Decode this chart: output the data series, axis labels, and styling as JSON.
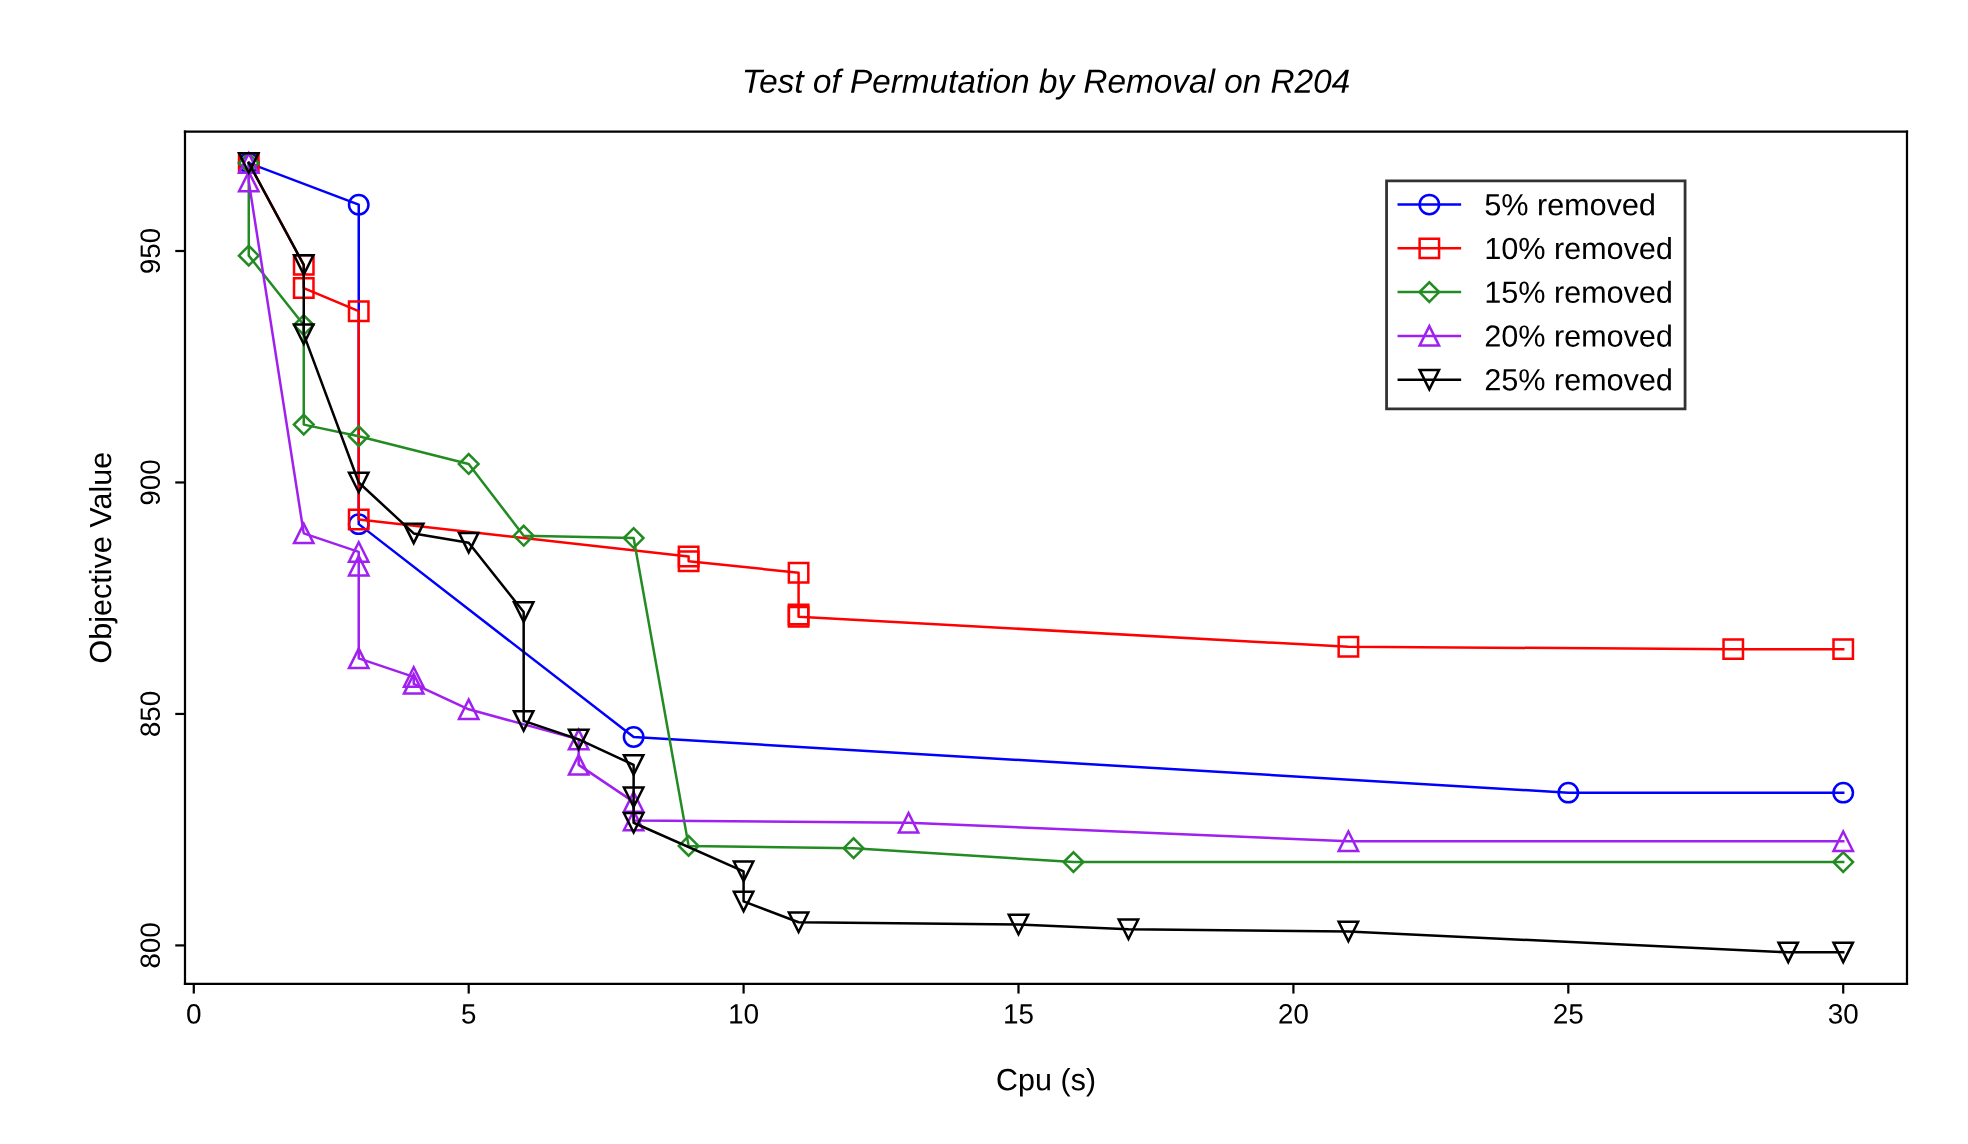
{
  "chart_data": {
    "type": "line",
    "title": "Test of Permutation by Removal on R204",
    "xlabel": "Cpu (s)",
    "ylabel": "Objective Value",
    "xlim": [
      -0.16,
      31.16
    ],
    "xticks": [
      0,
      5,
      10,
      15,
      20,
      25,
      30
    ],
    "ylim": [
      791.7,
      975.8
    ],
    "yticks": [
      800,
      850,
      900,
      950
    ],
    "grid": false,
    "legend": "top right",
    "series": [
      {
        "name": "5% removed",
        "color": "#0000ff",
        "marker": "circle",
        "x": [
          1,
          3,
          3,
          8,
          25,
          30
        ],
        "values": [
          969,
          960,
          891,
          845,
          833,
          833
        ]
      },
      {
        "name": "10% removed",
        "color": "#ff0000",
        "marker": "square",
        "x": [
          1,
          2,
          2,
          3,
          3,
          9,
          9,
          11,
          11,
          11,
          21,
          28,
          30
        ],
        "values": [
          969,
          947,
          942,
          937,
          892,
          884,
          883,
          880.5,
          871.5,
          871,
          864.5,
          864,
          864
        ]
      },
      {
        "name": "15% removed",
        "color": "#228b22",
        "marker": "diamond",
        "x": [
          1,
          1,
          2,
          2,
          3,
          5,
          6,
          8,
          9,
          12,
          16,
          30
        ],
        "values": [
          969,
          949,
          934,
          912.5,
          910,
          904,
          888.5,
          888,
          821.5,
          821,
          818,
          818
        ]
      },
      {
        "name": "20% removed",
        "color": "#a020f0",
        "marker": "triangle",
        "x": [
          1,
          1,
          2,
          3,
          3,
          3,
          4,
          4,
          5,
          7,
          7,
          8,
          8,
          13,
          21,
          30
        ],
        "values": [
          969,
          965,
          889,
          885,
          882,
          862,
          858,
          856.5,
          851,
          844.5,
          839,
          831,
          827,
          826.5,
          822.5,
          822.5
        ]
      },
      {
        "name": "25% removed",
        "color": "#000000",
        "marker": "triangle-down",
        "x": [
          1,
          2,
          2,
          3,
          4,
          5,
          6,
          6,
          7,
          8,
          8,
          8,
          10,
          10,
          11,
          15,
          17,
          21,
          29,
          30
        ],
        "values": [
          969,
          947,
          932,
          900,
          889,
          887,
          872,
          848.5,
          844.5,
          839,
          832,
          826.5,
          816,
          809.5,
          805,
          804.5,
          803.5,
          803,
          798.5,
          798.5
        ]
      }
    ]
  }
}
